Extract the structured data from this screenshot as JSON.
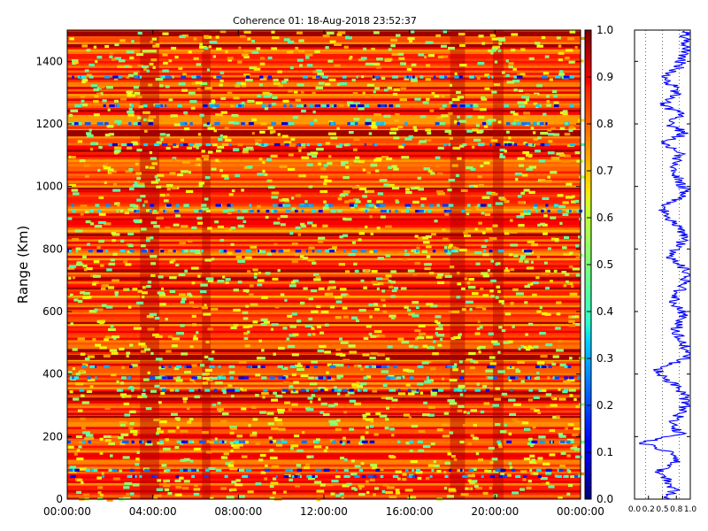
{
  "chart_data": [
    {
      "type": "heatmap",
      "title": "Coherence 01: 18-Aug-2018 23:52:37",
      "xlabel": "",
      "ylabel": "Range (Km)",
      "x_ticks": [
        "00:00:00",
        "04:00:00",
        "08:00:00",
        "12:00:00",
        "16:00:00",
        "20:00:00",
        "00:00:00"
      ],
      "x_range_hours": [
        0,
        24
      ],
      "y_ticks": [
        "0",
        "200",
        "400",
        "600",
        "800",
        "1000",
        "1200",
        "1400"
      ],
      "y_tick_values": [
        0,
        200,
        400,
        600,
        800,
        1000,
        1200,
        1400
      ],
      "ylim": [
        0,
        1500
      ],
      "value_range": [
        0,
        1
      ],
      "colormap": "jet",
      "grid": false,
      "high_coherence_ranges_km": [
        [
          1480,
          1495
        ],
        [
          1445,
          1455
        ],
        [
          1238,
          1245
        ],
        [
          1160,
          1180
        ],
        [
          1110,
          1118
        ],
        [
          990,
          996
        ],
        [
          840,
          850
        ],
        [
          725,
          735
        ],
        [
          700,
          708
        ],
        [
          670,
          676
        ],
        [
          560,
          566
        ],
        [
          470,
          480
        ],
        [
          445,
          462
        ],
        [
          335,
          345
        ],
        [
          315,
          325
        ],
        [
          260,
          266
        ]
      ],
      "low_coherence_ranges_km": [
        [
          1345,
          1356
        ],
        [
          1255,
          1262
        ],
        [
          1198,
          1205
        ],
        [
          1130,
          1138
        ],
        [
          935,
          945
        ],
        [
          915,
          928
        ],
        [
          790,
          798
        ],
        [
          420,
          428
        ],
        [
          385,
          392
        ],
        [
          345,
          352
        ],
        [
          180,
          187
        ],
        [
          90,
          96
        ],
        [
          70,
          76
        ]
      ],
      "high_coherence_time_bands_hours": [
        [
          3.4,
          4.3
        ],
        [
          6.3,
          6.7
        ],
        [
          17.9,
          18.6
        ],
        [
          19.9,
          20.4
        ]
      ]
    },
    {
      "type": "line",
      "title": "",
      "xlabel": "",
      "ylabel": "",
      "x_ticks": [
        "0.0",
        "0.2",
        "0.5",
        "0.8",
        "1.0"
      ],
      "xlim": [
        0,
        1
      ],
      "ylim": [
        0,
        1500
      ],
      "series": [
        {
          "color": "#0000ff",
          "range_km": [
            0,
            30,
            60,
            90,
            120,
            150,
            180,
            210,
            240,
            270,
            300,
            330,
            360,
            390,
            420,
            450,
            480,
            510,
            540,
            570,
            600,
            630,
            660,
            690,
            720,
            750,
            780,
            810,
            840,
            870,
            900,
            930,
            960,
            990,
            1020,
            1050,
            1080,
            1110,
            1140,
            1170,
            1200,
            1230,
            1260,
            1290,
            1320,
            1350,
            1380,
            1410,
            1440,
            1470,
            1500
          ],
          "coherence": [
            0.55,
            0.72,
            0.6,
            0.45,
            0.78,
            0.7,
            0.1,
            0.82,
            0.7,
            0.8,
            0.92,
            0.9,
            0.75,
            0.55,
            0.42,
            0.93,
            0.95,
            0.8,
            0.75,
            0.82,
            0.88,
            0.7,
            0.78,
            0.9,
            0.93,
            0.85,
            0.6,
            0.82,
            0.9,
            0.78,
            0.6,
            0.52,
            0.78,
            0.9,
            0.8,
            0.7,
            0.74,
            0.85,
            0.5,
            0.92,
            0.6,
            0.85,
            0.5,
            0.75,
            0.7,
            0.45,
            0.8,
            0.85,
            0.95,
            0.9,
            0.9
          ]
        }
      ]
    },
    {
      "type": "colorbar",
      "ticks": [
        "0.0",
        "0.1",
        "0.2",
        "0.3",
        "0.4",
        "0.5",
        "0.6",
        "0.7",
        "0.8",
        "0.9",
        "1.0"
      ],
      "range": [
        0,
        1
      ],
      "colormap": "jet"
    }
  ]
}
